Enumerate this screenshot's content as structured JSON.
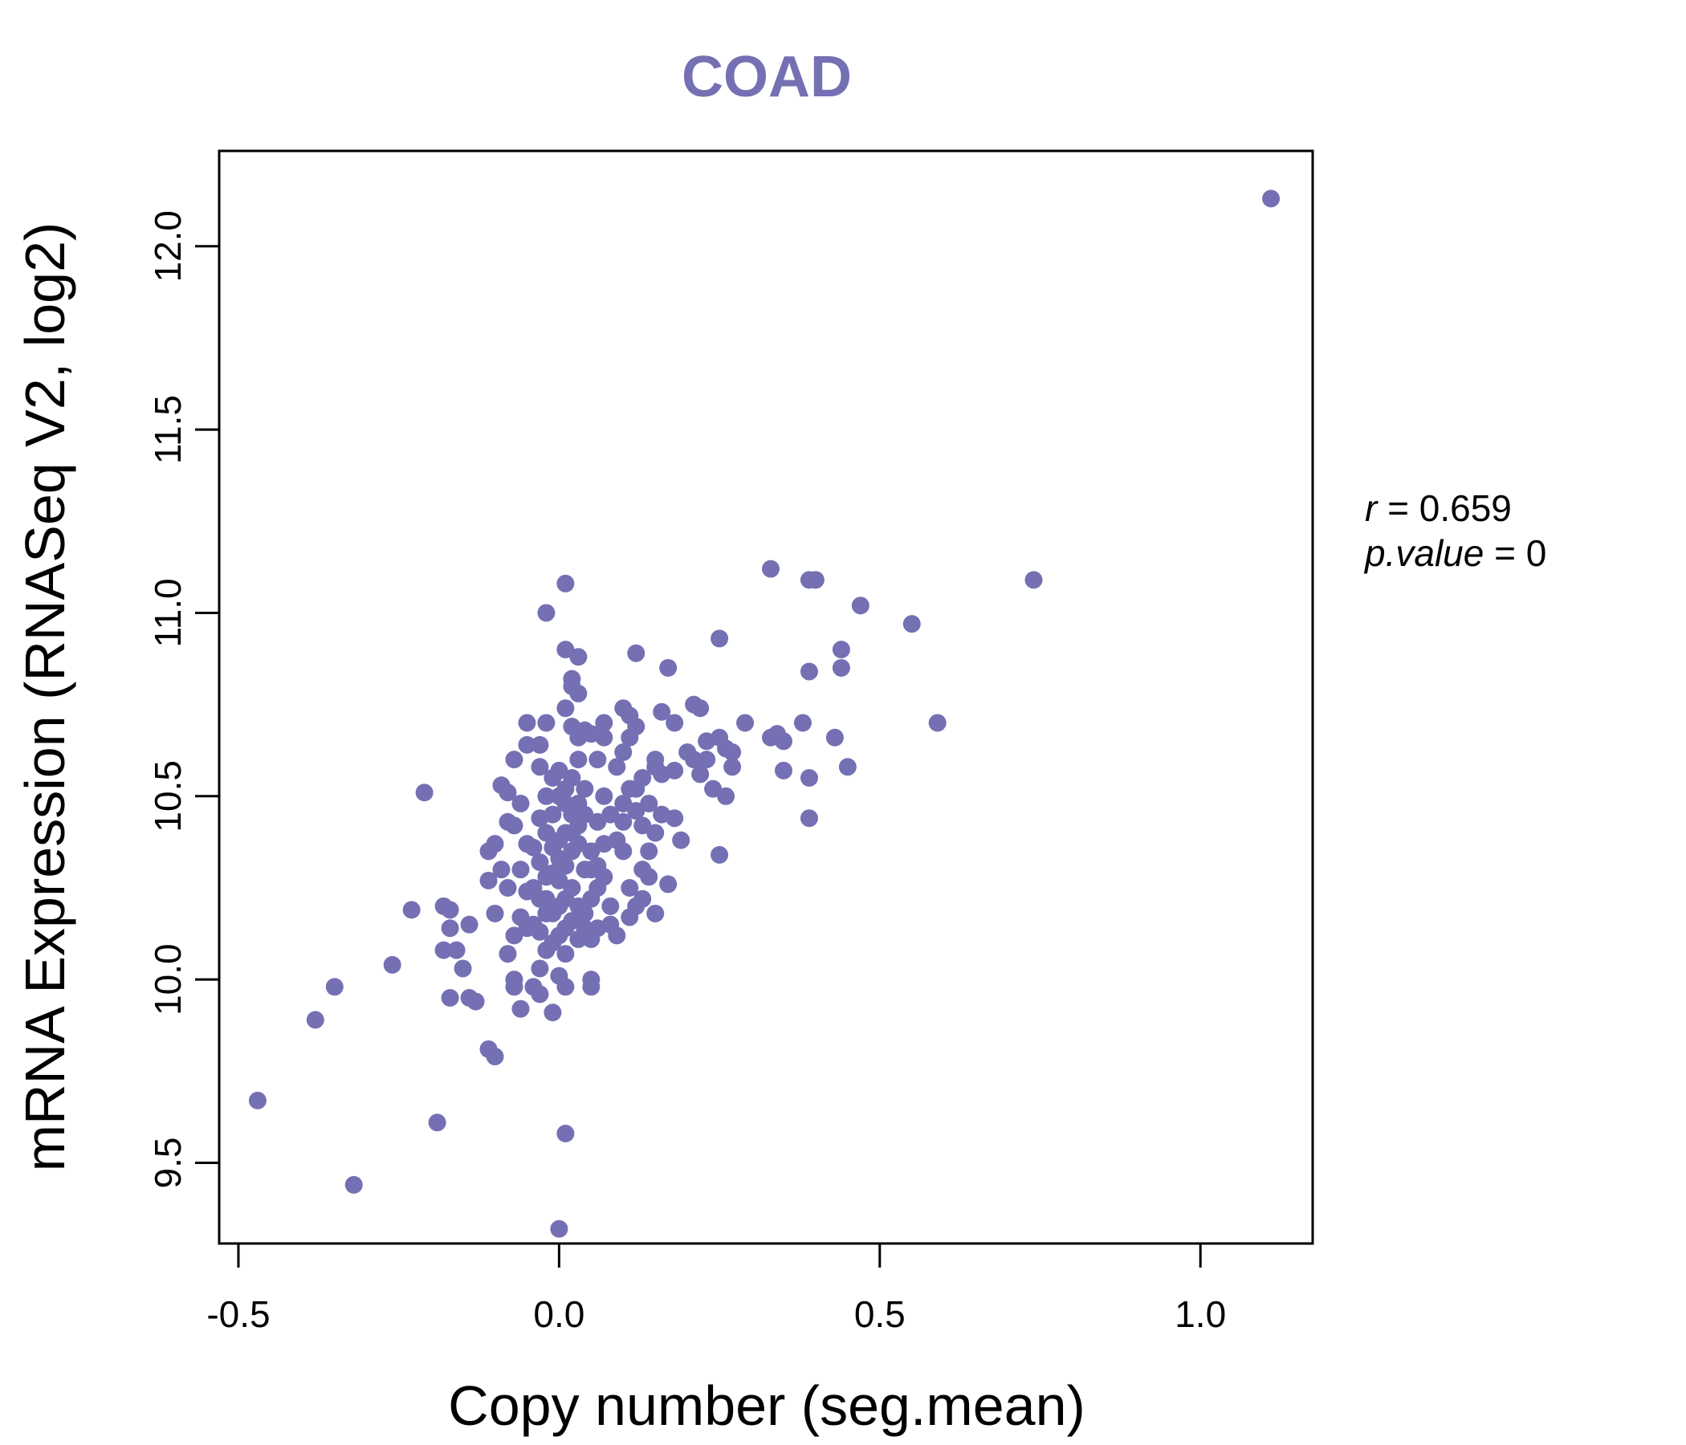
{
  "chart_data": {
    "type": "scatter",
    "title": "COAD",
    "xlabel": "Copy number (seg.mean)",
    "ylabel": "mRNA Expression (RNASeq V2, log2)",
    "xlim": [
      -0.53,
      1.175
    ],
    "ylim": [
      9.28,
      12.26
    ],
    "x_ticks": [
      "-0.5",
      "0.0",
      "0.5",
      "1.0"
    ],
    "y_ticks": [
      "9.5",
      "10.0",
      "10.5",
      "11.0",
      "11.5",
      "12.0"
    ],
    "grid": false,
    "legend": "none",
    "point_color": "#7570b3",
    "stats": {
      "r_label": "r",
      "r_value": "0.659",
      "p_label": "p.value",
      "p_value": "0"
    },
    "points": [
      [
        1.11,
        12.13
      ],
      [
        0.74,
        11.09
      ],
      [
        0.55,
        10.97
      ],
      [
        0.59,
        10.7
      ],
      [
        0.47,
        11.02
      ],
      [
        0.44,
        10.9
      ],
      [
        0.44,
        10.85
      ],
      [
        0.45,
        10.58
      ],
      [
        0.43,
        10.66
      ],
      [
        0.4,
        11.09
      ],
      [
        0.39,
        11.09
      ],
      [
        0.39,
        10.84
      ],
      [
        0.39,
        10.55
      ],
      [
        0.39,
        10.44
      ],
      [
        0.38,
        10.7
      ],
      [
        0.34,
        10.67
      ],
      [
        0.33,
        10.66
      ],
      [
        0.33,
        11.12
      ],
      [
        0.35,
        10.65
      ],
      [
        0.35,
        10.57
      ],
      [
        0.29,
        10.7
      ],
      [
        0.26,
        10.63
      ],
      [
        0.25,
        10.93
      ],
      [
        0.25,
        10.66
      ],
      [
        0.25,
        10.34
      ],
      [
        0.23,
        10.6
      ],
      [
        0.22,
        10.74
      ],
      [
        0.21,
        10.75
      ],
      [
        0.24,
        10.52
      ],
      [
        0.26,
        10.5
      ],
      [
        0.27,
        10.58
      ],
      [
        0.27,
        10.62
      ],
      [
        0.22,
        10.56
      ],
      [
        0.17,
        10.85
      ],
      [
        0.18,
        10.7
      ],
      [
        0.18,
        10.57
      ],
      [
        0.18,
        10.44
      ],
      [
        0.19,
        10.38
      ],
      [
        0.16,
        10.73
      ],
      [
        0.16,
        10.56
      ],
      [
        0.15,
        10.58
      ],
      [
        0.14,
        10.48
      ],
      [
        0.15,
        10.4
      ],
      [
        0.14,
        10.35
      ],
      [
        0.17,
        10.26
      ],
      [
        0.12,
        10.89
      ],
      [
        0.11,
        10.72
      ],
      [
        0.1,
        10.74
      ],
      [
        0.12,
        10.69
      ],
      [
        0.11,
        10.66
      ],
      [
        0.1,
        10.62
      ],
      [
        0.11,
        10.52
      ],
      [
        0.1,
        10.48
      ],
      [
        0.1,
        10.43
      ],
      [
        0.09,
        10.38
      ],
      [
        0.1,
        10.35
      ],
      [
        0.13,
        10.3
      ],
      [
        0.13,
        10.22
      ],
      [
        0.11,
        10.25
      ],
      [
        0.12,
        10.2
      ],
      [
        0.11,
        10.17
      ],
      [
        0.09,
        10.12
      ],
      [
        0.08,
        10.15
      ],
      [
        0.07,
        10.7
      ],
      [
        0.07,
        10.66
      ],
      [
        0.06,
        10.6
      ],
      [
        0.07,
        10.5
      ],
      [
        0.06,
        10.43
      ],
      [
        0.05,
        10.35
      ],
      [
        0.06,
        10.31
      ],
      [
        0.07,
        10.28
      ],
      [
        0.05,
        10.22
      ],
      [
        0.04,
        10.18
      ],
      [
        0.06,
        10.14
      ],
      [
        0.05,
        10.11
      ],
      [
        0.03,
        10.88
      ],
      [
        0.03,
        10.78
      ],
      [
        0.02,
        10.82
      ],
      [
        0.02,
        10.8
      ],
      [
        0.01,
        11.08
      ],
      [
        0.01,
        10.9
      ],
      [
        0.01,
        10.74
      ],
      [
        0.02,
        10.69
      ],
      [
        0.03,
        10.66
      ],
      [
        0.04,
        10.68
      ],
      [
        0.03,
        10.6
      ],
      [
        0.02,
        10.55
      ],
      [
        0.01,
        10.52
      ],
      [
        0.0,
        10.57
      ],
      [
        -0.01,
        10.55
      ],
      [
        0.0,
        10.5
      ],
      [
        0.01,
        10.48
      ],
      [
        0.02,
        10.45
      ],
      [
        0.03,
        10.42
      ],
      [
        0.01,
        10.4
      ],
      [
        0.0,
        10.38
      ],
      [
        -0.01,
        10.36
      ],
      [
        0.0,
        10.33
      ],
      [
        0.01,
        10.31
      ],
      [
        -0.01,
        10.29
      ],
      [
        0.0,
        10.27
      ],
      [
        0.02,
        10.25
      ],
      [
        0.01,
        10.22
      ],
      [
        0.0,
        10.2
      ],
      [
        -0.01,
        10.18
      ],
      [
        0.02,
        10.16
      ],
      [
        0.01,
        10.14
      ],
      [
        0.0,
        10.12
      ],
      [
        -0.01,
        10.1
      ],
      [
        0.01,
        10.07
      ],
      [
        0.03,
        10.11
      ],
      [
        0.04,
        10.14
      ],
      [
        0.03,
        10.2
      ],
      [
        0.04,
        10.3
      ],
      [
        0.02,
        10.35
      ],
      [
        0.03,
        10.48
      ],
      [
        0.04,
        10.52
      ],
      [
        0.05,
        10.67
      ],
      [
        -0.02,
        10.7
      ],
      [
        -0.03,
        10.64
      ],
      [
        -0.03,
        10.58
      ],
      [
        -0.02,
        10.5
      ],
      [
        -0.03,
        10.44
      ],
      [
        -0.02,
        10.4
      ],
      [
        -0.04,
        10.36
      ],
      [
        -0.03,
        10.32
      ],
      [
        -0.02,
        10.28
      ],
      [
        -0.04,
        10.25
      ],
      [
        -0.03,
        10.22
      ],
      [
        -0.02,
        10.18
      ],
      [
        -0.04,
        10.15
      ],
      [
        -0.03,
        10.13
      ],
      [
        -0.02,
        10.08
      ],
      [
        -0.03,
        10.03
      ],
      [
        -0.04,
        9.98
      ],
      [
        -0.03,
        9.96
      ],
      [
        -0.02,
        11.0
      ],
      [
        -0.01,
        9.91
      ],
      [
        0.0,
        10.01
      ],
      [
        0.01,
        9.98
      ],
      [
        0.05,
        10.0
      ],
      [
        0.05,
        9.98
      ],
      [
        -0.05,
        10.7
      ],
      [
        -0.05,
        10.64
      ],
      [
        -0.06,
        10.48
      ],
      [
        -0.05,
        10.37
      ],
      [
        -0.06,
        10.3
      ],
      [
        -0.05,
        10.24
      ],
      [
        -0.06,
        10.17
      ],
      [
        -0.05,
        10.14
      ],
      [
        -0.07,
        10.6
      ],
      [
        -0.08,
        10.51
      ],
      [
        -0.09,
        10.53
      ],
      [
        -0.08,
        10.43
      ],
      [
        -0.07,
        10.42
      ],
      [
        -0.09,
        10.3
      ],
      [
        -0.08,
        10.25
      ],
      [
        -0.07,
        10.12
      ],
      [
        -0.08,
        10.07
      ],
      [
        -0.07,
        10.0
      ],
      [
        -0.07,
        9.98
      ],
      [
        -0.06,
        9.92
      ],
      [
        -0.1,
        10.37
      ],
      [
        -0.11,
        10.35
      ],
      [
        -0.11,
        10.27
      ],
      [
        -0.1,
        10.18
      ],
      [
        -0.11,
        9.81
      ],
      [
        -0.1,
        9.79
      ],
      [
        -0.14,
        10.15
      ],
      [
        -0.15,
        10.03
      ],
      [
        -0.13,
        9.94
      ],
      [
        -0.14,
        9.95
      ],
      [
        -0.17,
        10.19
      ],
      [
        -0.17,
        10.14
      ],
      [
        -0.16,
        10.08
      ],
      [
        -0.18,
        10.2
      ],
      [
        -0.18,
        10.08
      ],
      [
        -0.17,
        9.95
      ],
      [
        -0.21,
        10.51
      ],
      [
        -0.23,
        10.19
      ],
      [
        -0.26,
        10.04
      ],
      [
        -0.35,
        9.98
      ],
      [
        -0.38,
        9.89
      ],
      [
        -0.47,
        9.67
      ],
      [
        -0.19,
        9.61
      ],
      [
        -0.32,
        9.44
      ],
      [
        0.01,
        9.58
      ],
      [
        0.0,
        9.32
      ],
      [
        0.2,
        10.62
      ],
      [
        0.21,
        10.6
      ],
      [
        0.23,
        10.65
      ],
      [
        0.15,
        10.6
      ],
      [
        0.13,
        10.55
      ],
      [
        0.12,
        10.52
      ],
      [
        0.09,
        10.58
      ],
      [
        0.08,
        10.45
      ],
      [
        0.07,
        10.37
      ],
      [
        0.05,
        10.3
      ],
      [
        0.06,
        10.25
      ],
      [
        0.08,
        10.2
      ],
      [
        0.14,
        10.28
      ],
      [
        0.15,
        10.18
      ],
      [
        0.12,
        10.46
      ],
      [
        0.13,
        10.42
      ],
      [
        0.16,
        10.45
      ],
      [
        0.04,
        10.45
      ],
      [
        0.02,
        10.4
      ],
      [
        -0.01,
        10.45
      ],
      [
        0.03,
        10.37
      ],
      [
        -0.02,
        10.22
      ]
    ]
  }
}
